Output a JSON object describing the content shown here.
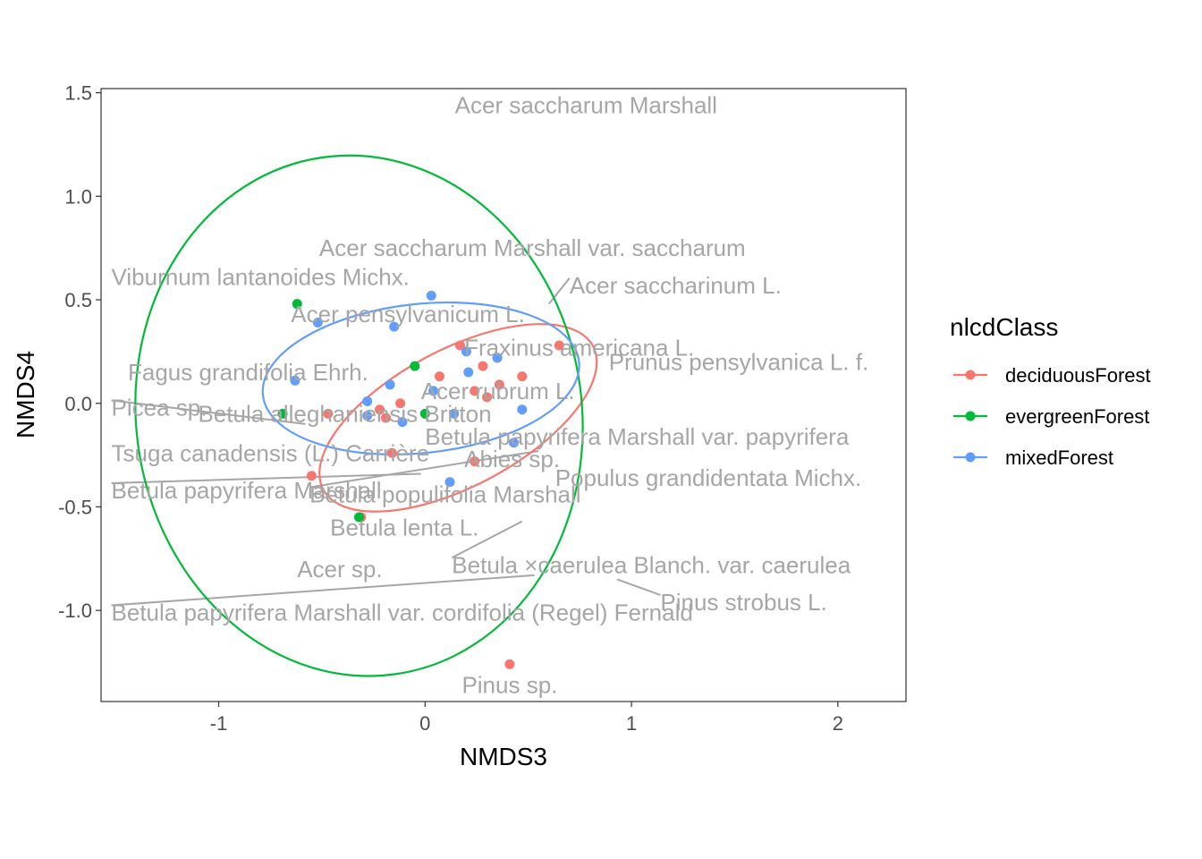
{
  "chart_data": {
    "type": "scatter",
    "xlabel": "NMDS3",
    "ylabel": "NMDS4",
    "xlim": [
      -1.57,
      2.33
    ],
    "ylim": [
      -1.44,
      1.52
    ],
    "xticks": [
      -1,
      0,
      1,
      2
    ],
    "yticks": [
      -1.0,
      -0.5,
      0.0,
      0.5,
      1.0,
      1.5
    ],
    "xtick_labels": [
      "-1",
      "0",
      "1",
      "2"
    ],
    "ytick_labels": [
      "-1.0",
      "-0.5",
      "0.0",
      "0.5",
      "1.0",
      "1.5"
    ],
    "grid": false,
    "legend": {
      "title": "nlcdClass",
      "placement": "right"
    },
    "series": [
      {
        "name": "deciduousForest",
        "color": "#F8766D",
        "points": [
          [
            0.17,
            0.28
          ],
          [
            0.07,
            0.13
          ],
          [
            0.28,
            0.18
          ],
          [
            0.35,
            0.22
          ],
          [
            0.36,
            0.09
          ],
          [
            0.47,
            0.13
          ],
          [
            0.24,
            0.06
          ],
          [
            0.3,
            0.03
          ],
          [
            -0.12,
            0.0
          ],
          [
            -0.22,
            -0.03
          ],
          [
            -0.19,
            -0.07
          ],
          [
            -0.47,
            -0.05
          ],
          [
            -0.16,
            -0.24
          ],
          [
            0.24,
            -0.28
          ],
          [
            -0.55,
            -0.35
          ],
          [
            -0.31,
            -0.55
          ],
          [
            0.41,
            -1.26
          ],
          [
            0.65,
            0.28
          ]
        ],
        "ellipse": {
          "center": [
            0.16,
            -0.07
          ],
          "rx": 0.74,
          "ry": 0.33,
          "angle_deg": 28
        }
      },
      {
        "name": "evergreenForest",
        "color": "#00BA38",
        "points": [
          [
            -0.62,
            0.48
          ],
          [
            -0.05,
            0.18
          ],
          [
            -0.69,
            -0.05
          ],
          [
            0.0,
            -0.05
          ],
          [
            -0.32,
            -0.55
          ]
        ],
        "ellipse": {
          "center": [
            -0.32,
            -0.06
          ],
          "rx": 1.08,
          "ry": 1.26,
          "angle_deg": 8
        }
      },
      {
        "name": "mixedForest",
        "color": "#619CFF",
        "points": [
          [
            0.03,
            0.52
          ],
          [
            -0.52,
            0.39
          ],
          [
            -0.15,
            0.37
          ],
          [
            0.2,
            0.25
          ],
          [
            0.21,
            0.15
          ],
          [
            0.35,
            0.22
          ],
          [
            -0.63,
            0.11
          ],
          [
            -0.17,
            0.09
          ],
          [
            0.04,
            0.06
          ],
          [
            -0.28,
            0.01
          ],
          [
            -0.28,
            -0.06
          ],
          [
            -0.11,
            -0.09
          ],
          [
            0.14,
            -0.05
          ],
          [
            0.47,
            -0.03
          ],
          [
            0.43,
            -0.19
          ],
          [
            0.12,
            -0.38
          ]
        ],
        "ellipse": {
          "center": [
            -0.02,
            0.12
          ],
          "rx": 0.77,
          "ry": 0.36,
          "angle_deg": 6
        }
      }
    ],
    "annotations": [
      {
        "text": "Acer saccharum Marshall",
        "x": 0.78,
        "y": 1.44
      },
      {
        "text": "Acer saccharum Marshall var. saccharum",
        "x": 0.52,
        "y": 0.75
      },
      {
        "text": "Viburnum lantanoides Michx.",
        "x": -1.52,
        "y": 0.61,
        "anchor": "start"
      },
      {
        "text": "Acer saccharinum L.",
        "x": 0.7,
        "y": 0.57,
        "anchor": "start",
        "line_to": [
          0.6,
          0.48
        ]
      },
      {
        "text": "Acer pensylvanicum L.",
        "x": -0.65,
        "y": 0.43,
        "anchor": "start"
      },
      {
        "text": "Fraxinus americana L.",
        "x": 0.19,
        "y": 0.27,
        "anchor": "start"
      },
      {
        "text": "Prunus pensylvanica L. f.",
        "x": 0.89,
        "y": 0.2,
        "anchor": "start"
      },
      {
        "text": "Fagus grandifolia Ehrh.",
        "x": -1.44,
        "y": 0.15,
        "anchor": "start"
      },
      {
        "text": "Acer rubrum L.",
        "x": -0.02,
        "y": 0.06,
        "anchor": "start"
      },
      {
        "text": "Picea sp.",
        "x": -1.52,
        "y": -0.02,
        "anchor": "start",
        "line_to": [
          -0.58,
          -0.1
        ]
      },
      {
        "text": "Betula alleghaniensis Britton",
        "x": -1.1,
        "y": -0.05,
        "anchor": "start"
      },
      {
        "text": "Betula papyrifera Marshall var. papyrifera",
        "x": 0.0,
        "y": -0.16,
        "anchor": "start"
      },
      {
        "text": "Tsuga canadensis (L.) Carrière",
        "x": -1.52,
        "y": -0.24,
        "anchor": "start"
      },
      {
        "text": "Abies sp.",
        "x": 0.19,
        "y": -0.27,
        "anchor": "start"
      },
      {
        "text": "Populus grandidentata Michx.",
        "x": 0.63,
        "y": -0.36,
        "anchor": "start"
      },
      {
        "text": "Betula papyrifera Marshall",
        "x": -1.52,
        "y": -0.42,
        "anchor": "start",
        "line_to": [
          -0.02,
          -0.34
        ]
      },
      {
        "text": "Betula populifolia Marshall",
        "x": -0.56,
        "y": -0.44,
        "anchor": "start",
        "line_to": [
          0.55,
          -0.23
        ]
      },
      {
        "text": "Betula lenta L.",
        "x": -0.46,
        "y": -0.6,
        "anchor": "start"
      },
      {
        "text": "Betula ×caerulea Blanch. var. caerulea",
        "x": 0.13,
        "y": -0.78,
        "anchor": "start",
        "line_to": [
          0.47,
          -0.57
        ]
      },
      {
        "text": "Acer sp.",
        "x": -0.62,
        "y": -0.8,
        "anchor": "start"
      },
      {
        "text": "Pinus strobus L.",
        "x": 1.14,
        "y": -0.96,
        "anchor": "start",
        "line_to": [
          0.93,
          -0.85
        ]
      },
      {
        "text": "Betula papyrifera Marshall var. cordifolia (Regel) Fernald",
        "x": -1.52,
        "y": -1.01,
        "anchor": "start",
        "line_to": [
          0.53,
          -0.83
        ]
      },
      {
        "text": "Pinus sp.",
        "x": 0.41,
        "y": -1.36
      }
    ]
  }
}
